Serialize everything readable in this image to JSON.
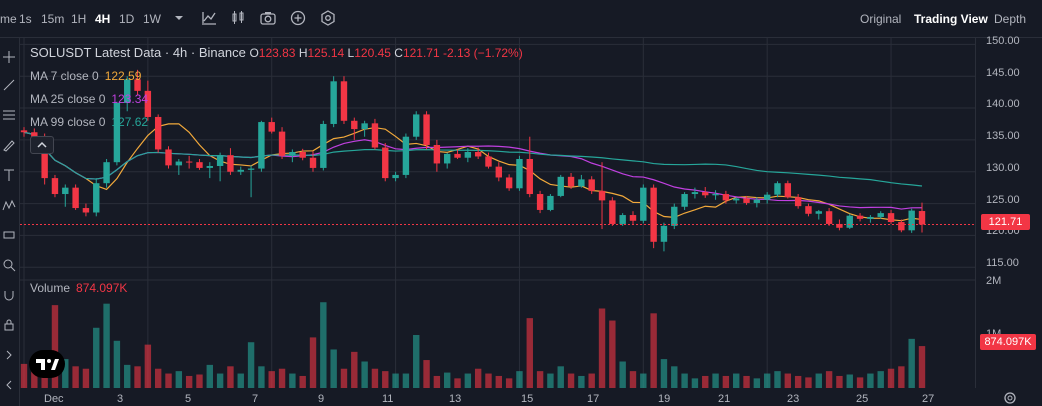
{
  "toolbar": {
    "timeframes": [
      "me",
      "1s",
      "15m",
      "1H",
      "4H",
      "1D",
      "1W"
    ],
    "active_timeframe": "4H",
    "views": [
      "Original",
      "Trading View",
      "Depth"
    ],
    "active_view": "Trading View",
    "icons": [
      "chevron-down-icon",
      "indicator-icon",
      "candle-type-icon",
      "camera-icon",
      "add-icon",
      "settings-icon"
    ]
  },
  "legend": {
    "symbol": "SOLUSDT Latest Data · 4h · Binance",
    "ohlc": {
      "o_label": "O",
      "o": "123.83",
      "h_label": "H",
      "h": "125.14",
      "l_label": "L",
      "l": "120.45",
      "c_label": "C",
      "c": "121.71",
      "change": "-2.13 (−1.72%)"
    },
    "ma": [
      {
        "label": "MA 7 close 0",
        "value": "122.59",
        "color": "#f2a93b"
      },
      {
        "label": "MA 25 close 0",
        "value": "123.34",
        "color": "#c040e0"
      },
      {
        "label": "MA 99 close 0",
        "value": "127.62",
        "color": "#26a69a"
      }
    ],
    "volume_label": "Volume",
    "volume_value": "874.097K"
  },
  "price_axis": {
    "ticks": [
      "150.00",
      "145.00",
      "140.00",
      "135.00",
      "130.00",
      "125.00",
      "120.00",
      "115.00"
    ],
    "current_price": "121.71",
    "volume_ticks": [
      "2M",
      "1M"
    ],
    "current_volume": "874.097K"
  },
  "time_axis": {
    "labels": [
      "Dec",
      "3",
      "5",
      "7",
      "9",
      "11",
      "13",
      "15",
      "17",
      "19",
      "21",
      "23",
      "25",
      "27"
    ]
  },
  "colors": {
    "up": "#26a69a",
    "down": "#f23645",
    "background": "#161a25",
    "grid": "#2a2e39"
  },
  "chart_data": {
    "type": "candlestick",
    "series": [
      {
        "name": "SOLUSDT",
        "ohlc": [
          [
            136.5,
            137,
            135.5,
            136.2
          ],
          [
            136.2,
            136.8,
            135,
            135.5
          ],
          [
            135.5,
            136,
            128,
            129
          ],
          [
            129,
            129.5,
            126,
            126.5
          ],
          [
            126.5,
            128,
            124.5,
            127.5
          ],
          [
            127.5,
            128,
            124,
            124.3
          ],
          [
            124.3,
            125,
            123,
            123.6
          ],
          [
            123.6,
            129,
            123,
            128.2
          ],
          [
            128.2,
            132,
            127.5,
            131.5
          ],
          [
            131.5,
            141,
            131,
            140.8
          ],
          [
            140.8,
            145,
            139.5,
            144.5
          ],
          [
            144.5,
            146,
            142,
            142.7
          ],
          [
            142.7,
            144.3,
            138,
            138.6
          ],
          [
            138.6,
            139,
            133,
            133.5
          ],
          [
            133.5,
            134,
            130.5,
            131
          ],
          [
            131,
            132,
            129.5,
            131.6
          ],
          [
            131.6,
            132.5,
            130.5,
            131.5
          ],
          [
            131.5,
            132,
            130.3,
            130.6
          ],
          [
            130.6,
            131.5,
            129,
            130.9
          ],
          [
            130.9,
            133,
            128.5,
            132.6
          ],
          [
            132.6,
            133.7,
            129.5,
            130
          ],
          [
            130,
            130.8,
            129.5,
            130.3
          ],
          [
            130.3,
            131,
            126,
            130.5
          ],
          [
            130.5,
            138,
            130,
            137.8
          ],
          [
            137.8,
            138.5,
            136,
            136.3
          ],
          [
            136.3,
            137,
            132,
            132.5
          ],
          [
            132.5,
            133.5,
            131.5,
            133.1
          ],
          [
            133.1,
            133.6,
            131.8,
            132.2
          ],
          [
            132.2,
            133.2,
            130,
            130.6
          ],
          [
            130.6,
            138,
            130.2,
            137.5
          ],
          [
            137.5,
            145,
            137,
            144.2
          ],
          [
            144.2,
            145,
            137.5,
            138
          ],
          [
            138,
            138.5,
            135,
            136.7
          ],
          [
            136.7,
            138,
            135.5,
            137.6
          ],
          [
            137.6,
            138.3,
            133.5,
            133.8
          ],
          [
            133.8,
            134.5,
            128.5,
            129
          ],
          [
            129,
            130,
            128.5,
            129.5
          ],
          [
            129.5,
            136,
            129,
            135.5
          ],
          [
            135.5,
            139.5,
            135,
            139
          ],
          [
            139,
            139.5,
            133.5,
            134.2
          ],
          [
            134.2,
            135,
            130,
            131.3
          ],
          [
            131.3,
            133,
            130.5,
            132.8
          ],
          [
            132.8,
            133.5,
            132,
            132.2
          ],
          [
            132.2,
            133.7,
            131.5,
            133.1
          ],
          [
            133.1,
            133.8,
            132,
            132.4
          ],
          [
            132.4,
            133,
            130.5,
            130.8
          ],
          [
            130.8,
            131.5,
            128.5,
            129.1
          ],
          [
            129.1,
            129.6,
            127,
            127.4
          ],
          [
            127.4,
            132.5,
            127,
            132
          ],
          [
            132,
            135.5,
            126,
            126.5
          ],
          [
            126.5,
            127,
            123.5,
            124
          ],
          [
            124,
            126.5,
            123.8,
            126.2
          ],
          [
            126.2,
            129.5,
            126,
            129.2
          ],
          [
            129.2,
            129.8,
            127.3,
            127.7
          ],
          [
            127.7,
            129.5,
            127.5,
            128.8
          ],
          [
            128.8,
            129.3,
            126.5,
            127
          ],
          [
            127,
            131.5,
            121,
            125.5
          ],
          [
            125.5,
            126,
            121.5,
            121.8
          ],
          [
            121.8,
            123.5,
            121.5,
            123.2
          ],
          [
            123.2,
            123.8,
            121.8,
            122.3
          ],
          [
            122.3,
            128,
            121.9,
            127.5
          ],
          [
            127.5,
            128,
            118,
            119
          ],
          [
            119,
            122,
            117.5,
            121.5
          ],
          [
            121.5,
            125,
            121,
            124.5
          ],
          [
            124.5,
            126.8,
            124,
            126.5
          ],
          [
            126.5,
            127.5,
            125.8,
            126.8
          ],
          [
            126.8,
            127.6,
            125.9,
            126.3
          ],
          [
            126.3,
            127.1,
            125.6,
            126.5
          ],
          [
            126.5,
            127,
            125,
            125.5
          ],
          [
            125.5,
            126,
            125,
            125.8
          ],
          [
            125.8,
            126.2,
            124.8,
            125.1
          ],
          [
            125.1,
            126,
            124.4,
            125.6
          ],
          [
            125.6,
            126.8,
            125,
            126.4
          ],
          [
            126.4,
            128.5,
            126,
            128.2
          ],
          [
            128.2,
            128.6,
            125.8,
            126
          ],
          [
            126,
            126.5,
            124.2,
            124.6
          ],
          [
            124.6,
            125,
            123,
            123.4
          ],
          [
            123.4,
            124,
            122.5,
            123.8
          ],
          [
            123.8,
            124.3,
            121.5,
            121.8
          ],
          [
            121.8,
            122.5,
            120.8,
            121.2
          ],
          [
            121.2,
            123.4,
            121,
            123.1
          ],
          [
            123.1,
            123.5,
            122.2,
            122.6
          ],
          [
            122.6,
            123.2,
            122,
            122.9
          ],
          [
            122.9,
            123.8,
            122.6,
            123.5
          ],
          [
            123.5,
            124,
            121.8,
            122.1
          ],
          [
            122.1,
            122.5,
            120.5,
            120.8
          ],
          [
            120.8,
            124.2,
            120.4,
            123.9
          ],
          [
            123.83,
            125.14,
            120.45,
            121.71
          ]
        ]
      },
      {
        "name": "Volume",
        "values": [
          0.5,
          0.62,
          0.55,
          1.72,
          0.6,
          0.45,
          0.4,
          1.25,
          1.75,
          0.98,
          0.48,
          0.45,
          0.9,
          0.4,
          0.3,
          0.35,
          0.25,
          0.28,
          0.48,
          0.3,
          0.45,
          0.3,
          0.95,
          0.45,
          0.35,
          0.4,
          0.3,
          0.25,
          1.05,
          1.78,
          0.8,
          0.4,
          0.75,
          0.55,
          0.4,
          0.35,
          0.3,
          0.3,
          1.1,
          0.58,
          0.25,
          0.32,
          0.2,
          0.3,
          0.4,
          0.3,
          0.25,
          0.2,
          0.35,
          1.45,
          0.35,
          0.3,
          0.45,
          0.3,
          0.25,
          0.3,
          1.65,
          1.4,
          0.55,
          0.35,
          0.3,
          1.55,
          0.6,
          0.45,
          0.3,
          0.2,
          0.25,
          0.3,
          0.25,
          0.3,
          0.25,
          0.2,
          0.3,
          0.35,
          0.3,
          0.25,
          0.22,
          0.3,
          0.35,
          0.25,
          0.28,
          0.22,
          0.3,
          0.35,
          0.4,
          0.45,
          1.02,
          0.87
        ]
      },
      {
        "name": "MA 7 close 0"
      },
      {
        "name": "MA 25 close 0"
      },
      {
        "name": "MA 99 close 0"
      }
    ],
    "price_range": [
      113,
      151
    ],
    "volume_range": [
      0,
      2.2
    ]
  }
}
